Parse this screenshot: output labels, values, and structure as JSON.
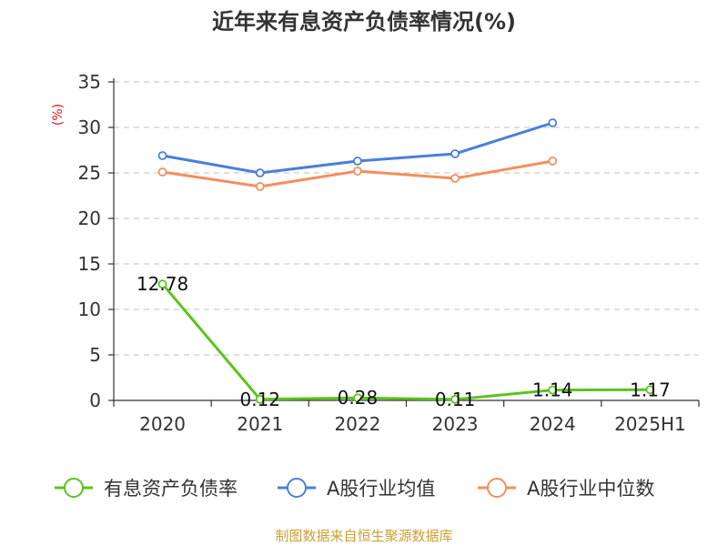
{
  "chart_data": {
    "type": "line",
    "title": "近年来有息资产负债率情况(%)",
    "ylabel": "(%)",
    "xlabel": "",
    "categories": [
      "2020",
      "2021",
      "2022",
      "2023",
      "2024",
      "2025H1"
    ],
    "ylim": [
      0,
      35
    ],
    "yticks": [
      0,
      5,
      10,
      15,
      20,
      25,
      30,
      35
    ],
    "grid": "horizontal dashed",
    "legend_position": "bottom",
    "series": [
      {
        "name": "有息资产负债率",
        "color": "#5bc41b",
        "values": [
          12.78,
          0.12,
          0.28,
          0.11,
          1.14,
          1.17
        ],
        "labels": [
          "12.78",
          "0.12",
          "0.28",
          "0.11",
          "1.14",
          "1.17"
        ]
      },
      {
        "name": "A股行业均值",
        "color": "#4a7fdb",
        "values": [
          26.9,
          25.0,
          26.3,
          27.1,
          30.5,
          null
        ]
      },
      {
        "name": "A股行业中位数",
        "color": "#f58e5a",
        "values": [
          25.1,
          23.5,
          25.2,
          24.4,
          26.3,
          null
        ]
      }
    ],
    "source": "制图数据来自恒生聚源数据库"
  }
}
